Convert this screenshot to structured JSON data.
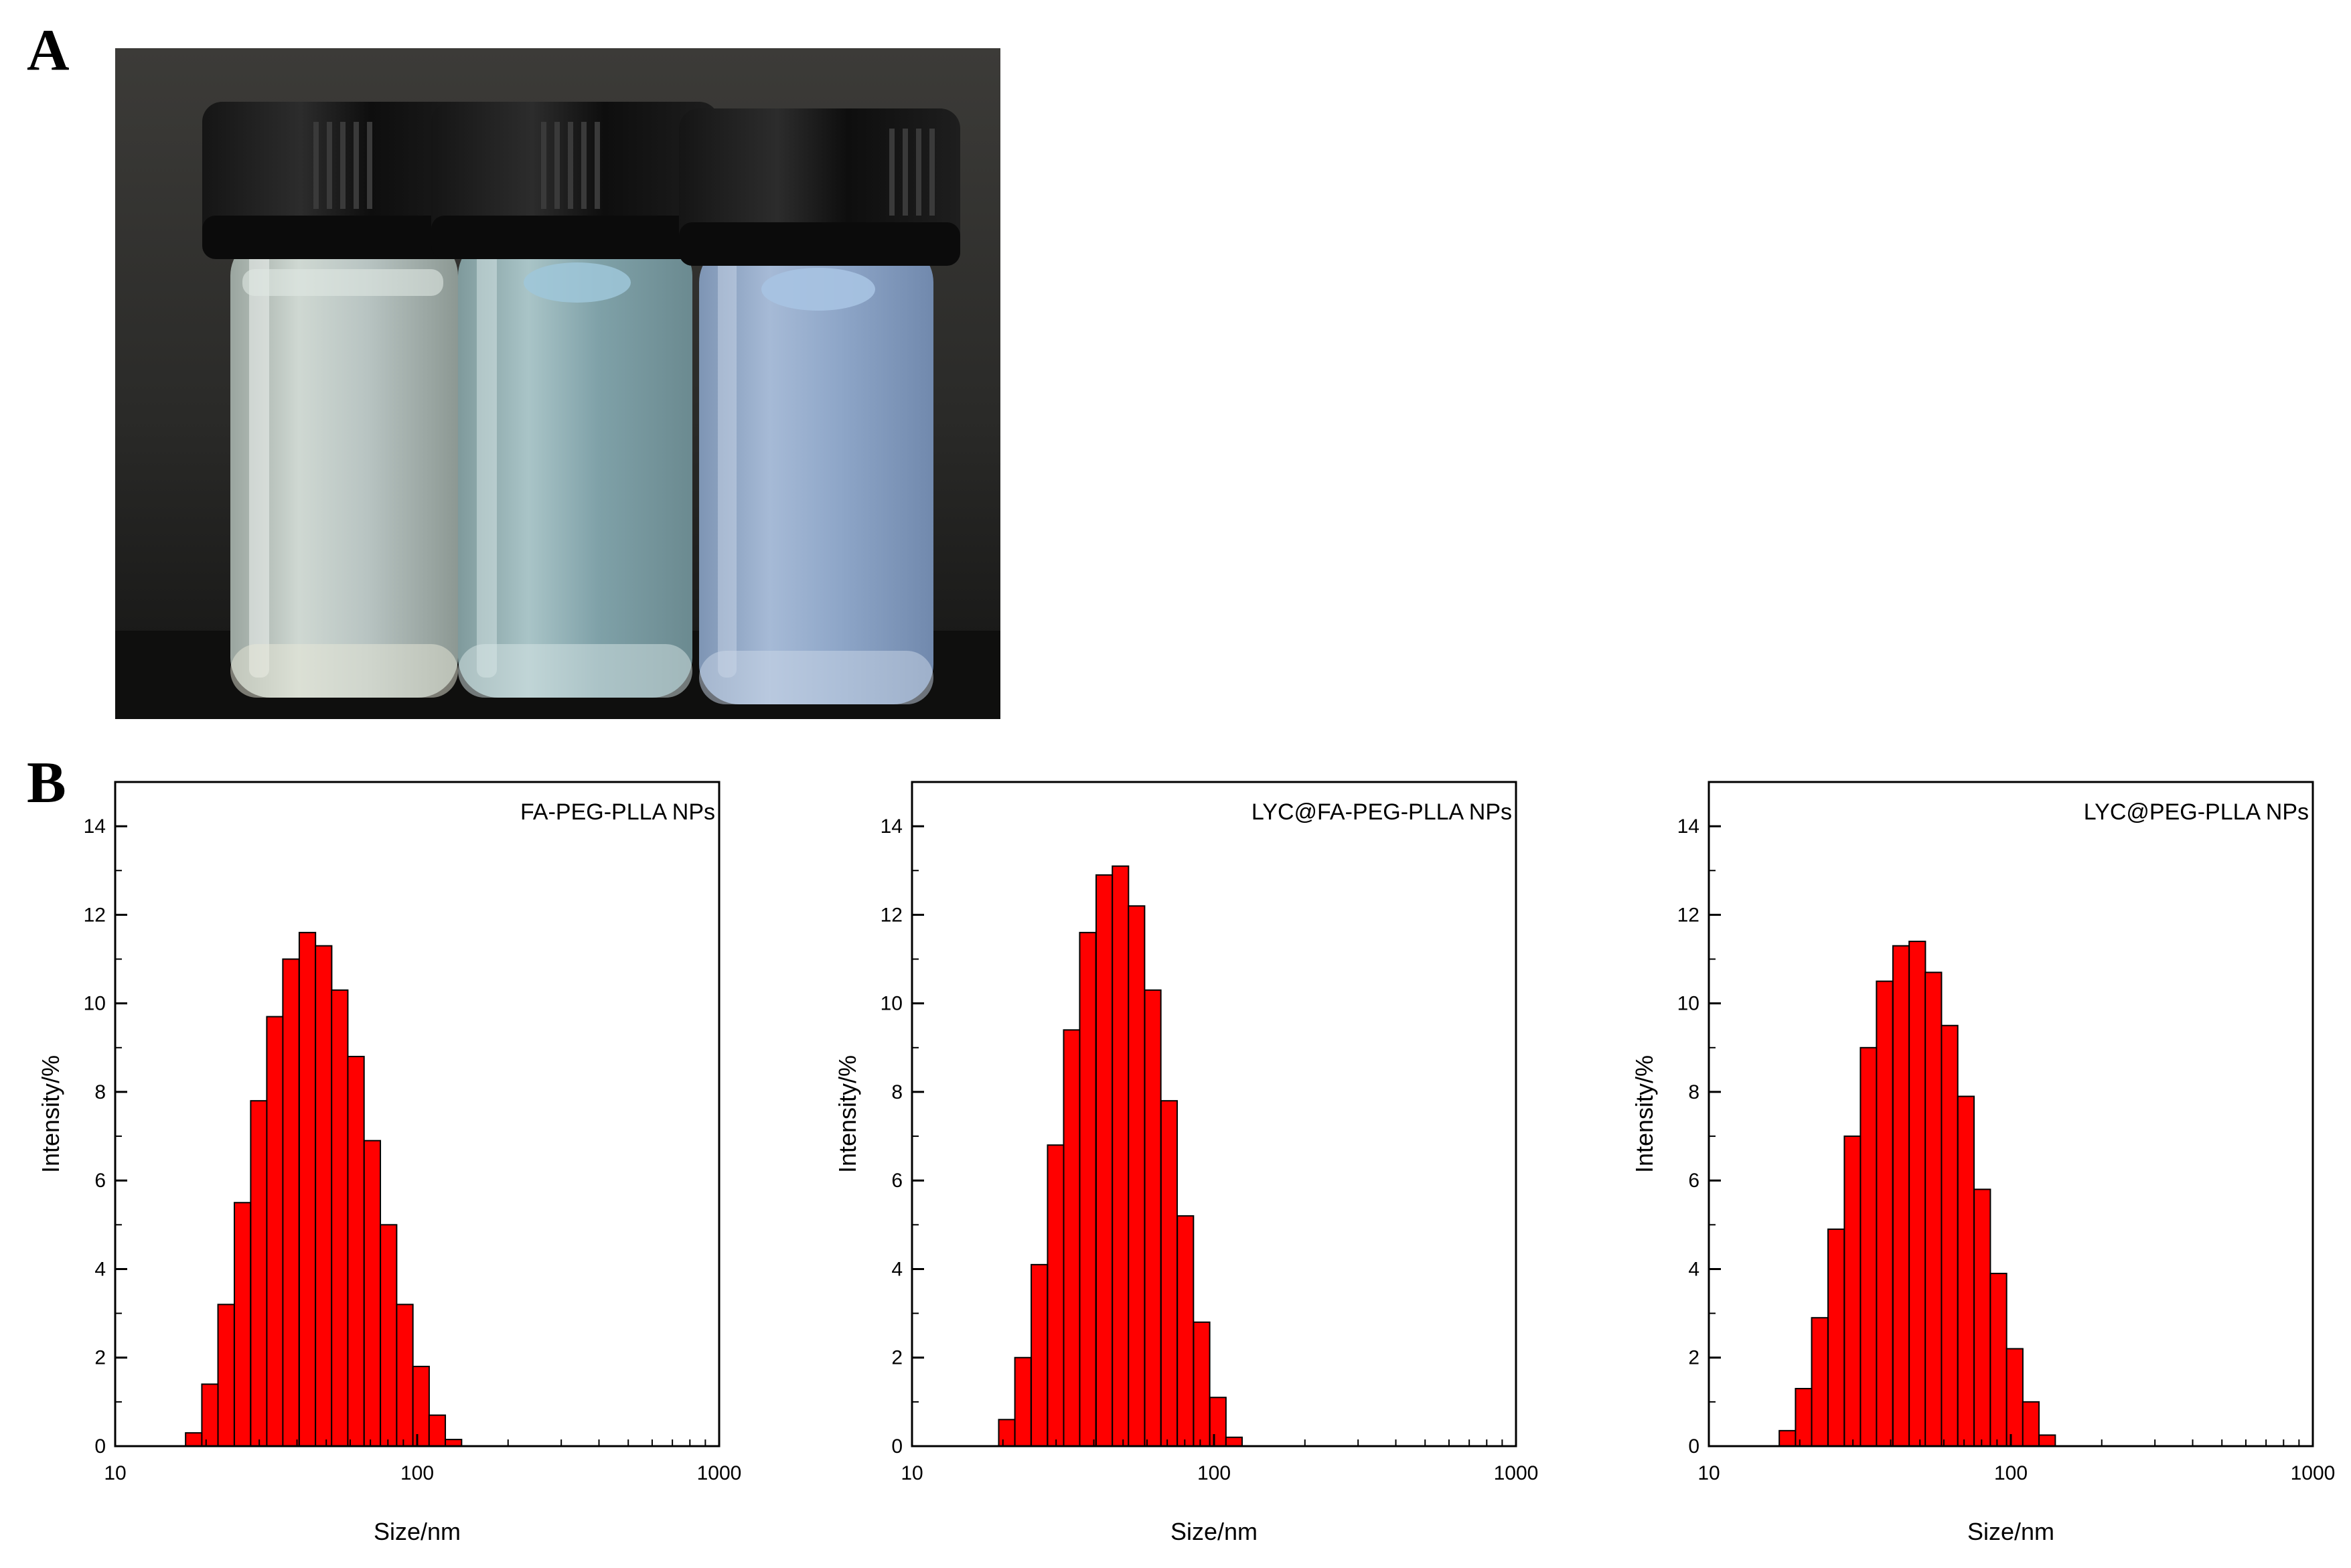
{
  "panels": {
    "a_label": "A",
    "b_label": "B"
  },
  "chart_data": [
    {
      "type": "bar",
      "title": "FA-PEG-PLLA NPs",
      "xlabel": "Size/nm",
      "ylabel": "Intensity/%",
      "x_scale": "log",
      "xlim": [
        10,
        1000
      ],
      "ylim": [
        0,
        15
      ],
      "x_ticks": [
        "10",
        "100",
        "1000"
      ],
      "y_ticks": [
        "0",
        "2",
        "4",
        "6",
        "8",
        "10",
        "12",
        "14"
      ],
      "grid": false,
      "bar_color": "#ff0000",
      "x": [
        18.2,
        20.6,
        23.3,
        26.4,
        29.9,
        33.8,
        38.2,
        43.3,
        49.0,
        55.4,
        62.7,
        71.0,
        80.4,
        91.0,
        103.0,
        116.5,
        131.9,
        149.3,
        169.0,
        191.2
      ],
      "values": [
        0.3,
        1.4,
        3.2,
        5.5,
        7.8,
        9.7,
        11.0,
        11.6,
        11.3,
        10.3,
        8.8,
        6.9,
        5.0,
        3.2,
        1.8,
        0.7,
        0.15,
        0,
        0,
        0
      ]
    },
    {
      "type": "bar",
      "title": "LYC@FA-PEG-PLLA NPs",
      "xlabel": "Size/nm",
      "ylabel": "Intensity/%",
      "x_scale": "log",
      "xlim": [
        10,
        1000
      ],
      "ylim": [
        0,
        15
      ],
      "x_ticks": [
        "10",
        "100",
        "1000"
      ],
      "y_ticks": [
        "0",
        "2",
        "4",
        "6",
        "8",
        "10",
        "12",
        "14"
      ],
      "grid": false,
      "bar_color": "#ff0000",
      "x": [
        20.6,
        23.3,
        26.4,
        29.9,
        33.8,
        38.2,
        43.3,
        49.0,
        55.4,
        62.7,
        71.0,
        80.4,
        91.0,
        103.0,
        116.5,
        131.9,
        149.3
      ],
      "values": [
        0.6,
        2.0,
        4.1,
        6.8,
        9.4,
        11.6,
        12.9,
        13.1,
        12.2,
        10.3,
        7.8,
        5.2,
        2.8,
        1.1,
        0.2,
        0,
        0
      ]
    },
    {
      "type": "bar",
      "title": "LYC@PEG-PLLA NPs",
      "xlabel": "Size/nm",
      "ylabel": "Intensity/%",
      "x_scale": "log",
      "xlim": [
        10,
        1000
      ],
      "ylim": [
        0,
        15
      ],
      "x_ticks": [
        "10",
        "100",
        "1000"
      ],
      "y_ticks": [
        "0",
        "2",
        "4",
        "6",
        "8",
        "10",
        "12",
        "14"
      ],
      "grid": false,
      "bar_color": "#ff0000",
      "x": [
        18.2,
        20.6,
        23.3,
        26.4,
        29.9,
        33.8,
        38.2,
        43.3,
        49.0,
        55.4,
        62.7,
        71.0,
        80.4,
        91.0,
        103.0,
        116.5,
        131.9,
        149.3,
        169.0,
        191.2
      ],
      "values": [
        0.35,
        1.3,
        2.9,
        4.9,
        7.0,
        9.0,
        10.5,
        11.3,
        11.4,
        10.7,
        9.5,
        7.9,
        5.8,
        3.9,
        2.2,
        1.0,
        0.25,
        0,
        0,
        0
      ]
    }
  ]
}
